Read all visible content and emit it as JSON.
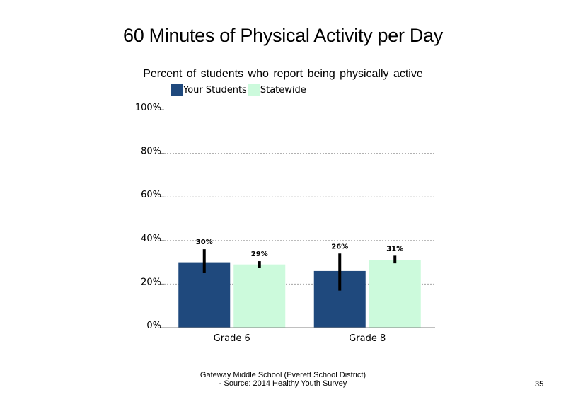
{
  "chart_data": {
    "type": "bar",
    "title": "60 Minutes of Physical Activity per Day",
    "subtitle": "Percent of students  who report being physically active",
    "categories": [
      "Grade 6",
      "Grade 8"
    ],
    "series": [
      {
        "name": "Your Students",
        "color": "#1f497d",
        "values": [
          30,
          26
        ],
        "error_low": [
          25,
          17
        ],
        "error_high": [
          36,
          34
        ],
        "labels": [
          "30%",
          "26%"
        ]
      },
      {
        "name": "Statewide",
        "color": "#ccfadc",
        "values": [
          29,
          31
        ],
        "error_low": [
          27.5,
          29.5
        ],
        "error_high": [
          30.5,
          33
        ],
        "labels": [
          "29%",
          "31%"
        ]
      }
    ],
    "ylim": [
      0,
      100
    ],
    "yticks": [
      0,
      20,
      40,
      60,
      80,
      100
    ],
    "ytick_labels": [
      "0%",
      "20%",
      "40%",
      "60%",
      "80%",
      "100%"
    ],
    "grid": true,
    "legend": "top-left"
  },
  "footer": {
    "line1": "Gateway Middle  School  (Everett School District)",
    "line2": "- Source: 2014 Healthy  Youth Survey"
  },
  "page_number": "35"
}
